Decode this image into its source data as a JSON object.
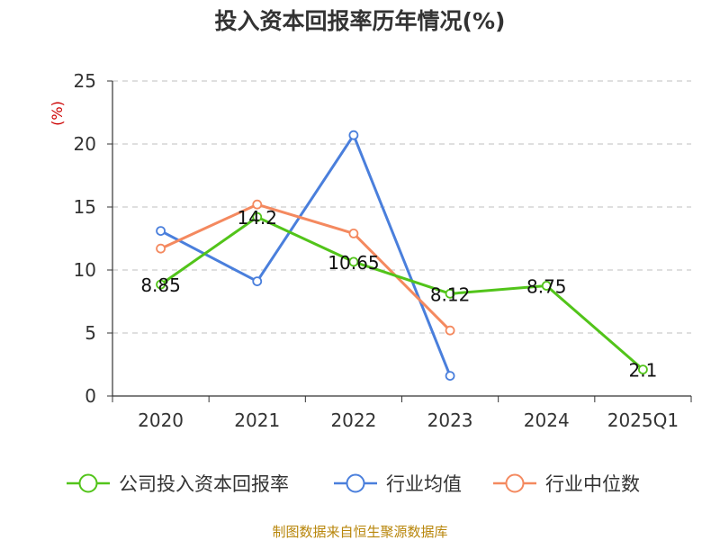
{
  "chart_data": {
    "type": "line",
    "title": "投入资本回报率历年情况(%)",
    "ylabel": "(%)",
    "xlabel": "",
    "categories": [
      "2020",
      "2021",
      "2022",
      "2023",
      "2024",
      "2025Q1"
    ],
    "ylim": [
      0,
      25
    ],
    "yticks": [
      0,
      5,
      10,
      15,
      20,
      25
    ],
    "grid": true,
    "legend_position": "bottom",
    "series": [
      {
        "name": "公司投入资本回报率",
        "color": "#52c41a",
        "values": [
          8.85,
          14.2,
          10.65,
          8.12,
          8.75,
          2.1
        ],
        "labels": [
          "8.85",
          "14.2",
          "10.65",
          "8.12",
          "8.75",
          "2.1"
        ]
      },
      {
        "name": "行业均值",
        "color": "#4a7fdc",
        "values": [
          13.1,
          9.1,
          20.7,
          1.6,
          null,
          null
        ]
      },
      {
        "name": "行业中位数",
        "color": "#f4895f",
        "values": [
          11.7,
          15.2,
          12.9,
          5.2,
          null,
          null
        ]
      }
    ]
  },
  "footer": "制图数据来自恒生聚源数据库"
}
